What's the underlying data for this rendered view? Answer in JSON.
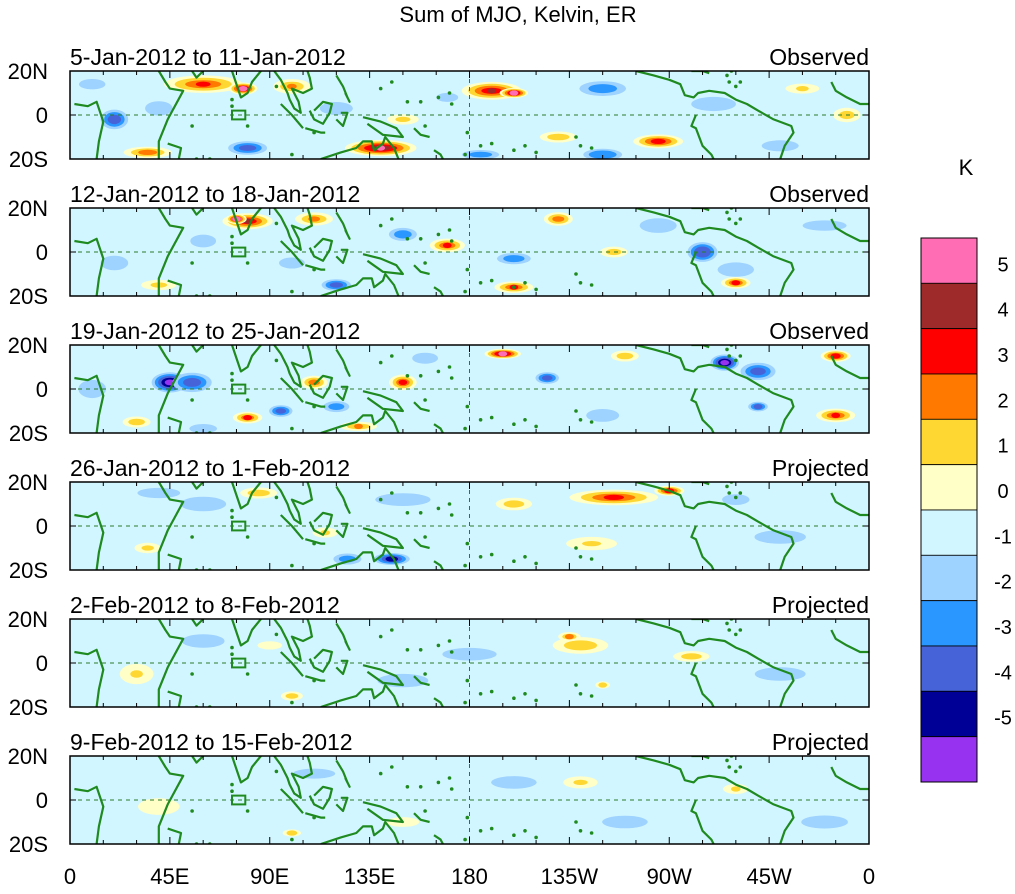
{
  "title": "Sum of MJO, Kelvin, ER",
  "panels": [
    {
      "period": "5-Jan-2012 to 11-Jan-2012",
      "status": "Observed",
      "blobs": [
        {
          "lon": 60,
          "lat": 14,
          "val": 3.6,
          "w": 40,
          "h": 9
        },
        {
          "lon": 78,
          "lat": 12,
          "val": 5.5,
          "w": 14,
          "h": 6
        },
        {
          "lon": 100,
          "lat": 13,
          "val": 2.6,
          "w": 20,
          "h": 8
        },
        {
          "lon": 20,
          "lat": -2,
          "val": -3.8,
          "w": 14,
          "h": 10
        },
        {
          "lon": 10,
          "lat": 14,
          "val": -1.8,
          "w": 15,
          "h": 6
        },
        {
          "lon": 40,
          "lat": 3,
          "val": -2.2,
          "w": 15,
          "h": 8
        },
        {
          "lon": 35,
          "lat": -17,
          "val": 3.2,
          "w": 25,
          "h": 6
        },
        {
          "lon": 80,
          "lat": -15,
          "val": -3.5,
          "w": 20,
          "h": 7
        },
        {
          "lon": 140,
          "lat": -15,
          "val": 5.5,
          "w": 35,
          "h": 8
        },
        {
          "lon": 120,
          "lat": 3,
          "val": -2.4,
          "w": 18,
          "h": 7
        },
        {
          "lon": 150,
          "lat": -2,
          "val": 1.8,
          "w": 18,
          "h": 6
        },
        {
          "lon": 190,
          "lat": 11,
          "val": 4.5,
          "w": 30,
          "h": 9
        },
        {
          "lon": 200,
          "lat": 10,
          "val": 5.5,
          "w": 14,
          "h": 5
        },
        {
          "lon": 170,
          "lat": 8,
          "val": -2.2,
          "w": 12,
          "h": 5
        },
        {
          "lon": 240,
          "lat": 12,
          "val": -2.5,
          "w": 25,
          "h": 8
        },
        {
          "lon": 290,
          "lat": 5,
          "val": -2,
          "w": 25,
          "h": 8
        },
        {
          "lon": 265,
          "lat": -12,
          "val": 4.2,
          "w": 25,
          "h": 7
        },
        {
          "lon": 220,
          "lat": -10,
          "val": 2.4,
          "w": 20,
          "h": 6
        },
        {
          "lon": 240,
          "lat": -18,
          "val": -3.4,
          "w": 20,
          "h": 6
        },
        {
          "lon": 185,
          "lat": -18,
          "val": -2.5,
          "w": 20,
          "h": 5
        },
        {
          "lon": 320,
          "lat": -14,
          "val": -2.4,
          "w": 20,
          "h": 6
        },
        {
          "lon": 350,
          "lat": 0,
          "val": 2.2,
          "w": 15,
          "h": 8
        },
        {
          "lon": 330,
          "lat": 12,
          "val": 1.5,
          "w": 20,
          "h": 6
        }
      ]
    },
    {
      "period": "12-Jan-2012 to 18-Jan-2012",
      "status": "Observed",
      "blobs": [
        {
          "lon": 80,
          "lat": 14,
          "val": 4.6,
          "w": 25,
          "h": 8
        },
        {
          "lon": 75,
          "lat": 15,
          "val": 5.5,
          "w": 10,
          "h": 5
        },
        {
          "lon": 110,
          "lat": 15,
          "val": 2.8,
          "w": 20,
          "h": 7
        },
        {
          "lon": 20,
          "lat": -5,
          "val": -2.3,
          "w": 15,
          "h": 8
        },
        {
          "lon": 60,
          "lat": 5,
          "val": -2.3,
          "w": 14,
          "h": 7
        },
        {
          "lon": 120,
          "lat": -15,
          "val": -3.6,
          "w": 15,
          "h": 6
        },
        {
          "lon": 100,
          "lat": -5,
          "val": -2.4,
          "w": 14,
          "h": 6
        },
        {
          "lon": 150,
          "lat": 8,
          "val": -2.6,
          "w": 15,
          "h": 7
        },
        {
          "lon": 170,
          "lat": 3,
          "val": 3.6,
          "w": 18,
          "h": 7
        },
        {
          "lon": 200,
          "lat": -3,
          "val": -2.6,
          "w": 18,
          "h": 6
        },
        {
          "lon": 220,
          "lat": 15,
          "val": 3.3,
          "w": 15,
          "h": 7
        },
        {
          "lon": 200,
          "lat": -16,
          "val": 3.5,
          "w": 20,
          "h": 6
        },
        {
          "lon": 245,
          "lat": 0,
          "val": 2.2,
          "w": 15,
          "h": 6
        },
        {
          "lon": 285,
          "lat": 0,
          "val": -4.4,
          "w": 15,
          "h": 10
        },
        {
          "lon": 265,
          "lat": 12,
          "val": -2.4,
          "w": 20,
          "h": 8
        },
        {
          "lon": 300,
          "lat": -8,
          "val": -2.2,
          "w": 20,
          "h": 8
        },
        {
          "lon": 300,
          "lat": -14,
          "val": 3.7,
          "w": 15,
          "h": 6
        },
        {
          "lon": 340,
          "lat": 12,
          "val": -1.8,
          "w": 25,
          "h": 6
        },
        {
          "lon": 40,
          "lat": -15,
          "val": 1.8,
          "w": 20,
          "h": 6
        }
      ]
    },
    {
      "period": "19-Jan-2012 to 25-Jan-2012",
      "status": "Observed",
      "blobs": [
        {
          "lon": 45,
          "lat": 3,
          "val": -5.5,
          "w": 18,
          "h": 10
        },
        {
          "lon": 55,
          "lat": 3,
          "val": -3.6,
          "w": 20,
          "h": 10
        },
        {
          "lon": 10,
          "lat": 0,
          "val": -2.3,
          "w": 15,
          "h": 10
        },
        {
          "lon": 80,
          "lat": -13,
          "val": 3.5,
          "w": 15,
          "h": 6
        },
        {
          "lon": 95,
          "lat": -10,
          "val": -3.6,
          "w": 12,
          "h": 6
        },
        {
          "lon": 110,
          "lat": 3,
          "val": 3.4,
          "w": 14,
          "h": 7
        },
        {
          "lon": 120,
          "lat": -8,
          "val": -2.5,
          "w": 14,
          "h": 6
        },
        {
          "lon": 150,
          "lat": 3,
          "val": 3.8,
          "w": 14,
          "h": 8
        },
        {
          "lon": 160,
          "lat": 14,
          "val": -2.3,
          "w": 14,
          "h": 6
        },
        {
          "lon": 195,
          "lat": 16,
          "val": 5.5,
          "w": 18,
          "h": 5
        },
        {
          "lon": 215,
          "lat": 5,
          "val": -3.6,
          "w": 12,
          "h": 6
        },
        {
          "lon": 240,
          "lat": -12,
          "val": -2.3,
          "w": 18,
          "h": 7
        },
        {
          "lon": 250,
          "lat": 15,
          "val": 2.4,
          "w": 15,
          "h": 6
        },
        {
          "lon": 295,
          "lat": 12,
          "val": -5.5,
          "w": 14,
          "h": 8
        },
        {
          "lon": 310,
          "lat": 8,
          "val": -3.5,
          "w": 18,
          "h": 9
        },
        {
          "lon": 310,
          "lat": -8,
          "val": -3.6,
          "w": 10,
          "h": 5
        },
        {
          "lon": 345,
          "lat": -12,
          "val": 3.6,
          "w": 20,
          "h": 7
        },
        {
          "lon": 345,
          "lat": 15,
          "val": 4.4,
          "w": 15,
          "h": 6
        },
        {
          "lon": 30,
          "lat": -15,
          "val": 2.4,
          "w": 15,
          "h": 6
        },
        {
          "lon": 130,
          "lat": -17,
          "val": 2.5,
          "w": 20,
          "h": 5
        },
        {
          "lon": 60,
          "lat": -18,
          "val": -2.3,
          "w": 15,
          "h": 5
        }
      ]
    },
    {
      "period": "26-Jan-2012 to 1-Feb-2012",
      "status": "Projected",
      "blobs": [
        {
          "lon": 245,
          "lat": 13,
          "val": 3.8,
          "w": 45,
          "h": 8
        },
        {
          "lon": 270,
          "lat": 16,
          "val": 4.4,
          "w": 15,
          "h": 5
        },
        {
          "lon": 200,
          "lat": 10,
          "val": 2.2,
          "w": 20,
          "h": 7
        },
        {
          "lon": 145,
          "lat": -15,
          "val": -4.5,
          "w": 18,
          "h": 6
        },
        {
          "lon": 125,
          "lat": -15,
          "val": -2.5,
          "w": 15,
          "h": 6
        },
        {
          "lon": 85,
          "lat": 15,
          "val": 2.4,
          "w": 20,
          "h": 6
        },
        {
          "lon": 35,
          "lat": -10,
          "val": 1.8,
          "w": 15,
          "h": 6
        },
        {
          "lon": 60,
          "lat": 10,
          "val": -2.3,
          "w": 25,
          "h": 8
        },
        {
          "lon": 150,
          "lat": 12,
          "val": -2.3,
          "w": 30,
          "h": 7
        },
        {
          "lon": 40,
          "lat": 15,
          "val": -1.6,
          "w": 25,
          "h": 6
        },
        {
          "lon": 235,
          "lat": -8,
          "val": 1.5,
          "w": 30,
          "h": 8
        },
        {
          "lon": 320,
          "lat": -5,
          "val": -1.6,
          "w": 30,
          "h": 8
        },
        {
          "lon": 300,
          "lat": 12,
          "val": -2.2,
          "w": 15,
          "h": 6
        },
        {
          "lon": 115,
          "lat": -3,
          "val": 1.5,
          "w": 15,
          "h": 6
        }
      ]
    },
    {
      "period": "2-Feb-2012 to 8-Feb-2012",
      "status": "Projected",
      "blobs": [
        {
          "lon": 230,
          "lat": 8,
          "val": 2.4,
          "w": 30,
          "h": 9
        },
        {
          "lon": 225,
          "lat": 12,
          "val": 2.6,
          "w": 12,
          "h": 5
        },
        {
          "lon": 280,
          "lat": 3,
          "val": 2.2,
          "w": 20,
          "h": 6
        },
        {
          "lon": 100,
          "lat": -15,
          "val": 2.3,
          "w": 12,
          "h": 5
        },
        {
          "lon": 180,
          "lat": 4,
          "val": -2.1,
          "w": 30,
          "h": 7
        },
        {
          "lon": 240,
          "lat": -10,
          "val": 2.2,
          "w": 8,
          "h": 4
        },
        {
          "lon": 30,
          "lat": -5,
          "val": 1.5,
          "w": 20,
          "h": 12
        },
        {
          "lon": 60,
          "lat": 10,
          "val": -1.6,
          "w": 25,
          "h": 8
        },
        {
          "lon": 150,
          "lat": -8,
          "val": -1.5,
          "w": 30,
          "h": 8
        },
        {
          "lon": 320,
          "lat": -5,
          "val": -1.5,
          "w": 30,
          "h": 8
        },
        {
          "lon": 90,
          "lat": 8,
          "val": 1.3,
          "w": 15,
          "h": 5
        }
      ]
    },
    {
      "period": "9-Feb-2012 to 15-Feb-2012",
      "status": "Projected",
      "blobs": [
        {
          "lon": 200,
          "lat": 8,
          "val": -2.2,
          "w": 25,
          "h": 7
        },
        {
          "lon": 250,
          "lat": -10,
          "val": -2.2,
          "w": 25,
          "h": 7
        },
        {
          "lon": 230,
          "lat": 8,
          "val": 1.6,
          "w": 20,
          "h": 7
        },
        {
          "lon": 100,
          "lat": -15,
          "val": 2.3,
          "w": 10,
          "h": 4
        },
        {
          "lon": 40,
          "lat": -3,
          "val": 1.4,
          "w": 25,
          "h": 10
        },
        {
          "lon": 110,
          "lat": 12,
          "val": -1.5,
          "w": 25,
          "h": 6
        },
        {
          "lon": 300,
          "lat": 5,
          "val": 1.5,
          "w": 15,
          "h": 6
        },
        {
          "lon": 150,
          "lat": -10,
          "val": 1.3,
          "w": 20,
          "h": 6
        },
        {
          "lon": 340,
          "lat": -10,
          "val": -1.3,
          "w": 25,
          "h": 7
        }
      ]
    }
  ],
  "y_ticks": [
    "20N",
    "0",
    "20S"
  ],
  "x_ticks": [
    "0",
    "45E",
    "90E",
    "135E",
    "180",
    "135W",
    "90W",
    "45W",
    "0"
  ],
  "colorbar": {
    "unit": "K",
    "labels": [
      "5",
      "4",
      "3",
      "2",
      "1",
      "0",
      "-1",
      "-2",
      "-3",
      "-4",
      "-5"
    ],
    "colors": [
      "#ff6eb4",
      "#9e2a2a",
      "#ff0000",
      "#ff7800",
      "#ffd733",
      "#ffffc8",
      "#d2f6ff",
      "#9ed2ff",
      "#2a96ff",
      "#4664d8",
      "#000096",
      "#9632f0"
    ]
  },
  "chart_data": {
    "type": "heatmap",
    "title": "Sum of MJO, Kelvin, ER",
    "variable_unit": "K",
    "longitude_range": [
      0,
      360
    ],
    "latitude_range": [
      -20,
      20
    ],
    "contour_levels": [
      -5,
      -4,
      -3,
      -2,
      -1,
      0,
      1,
      2,
      3,
      4,
      5
    ]
  }
}
